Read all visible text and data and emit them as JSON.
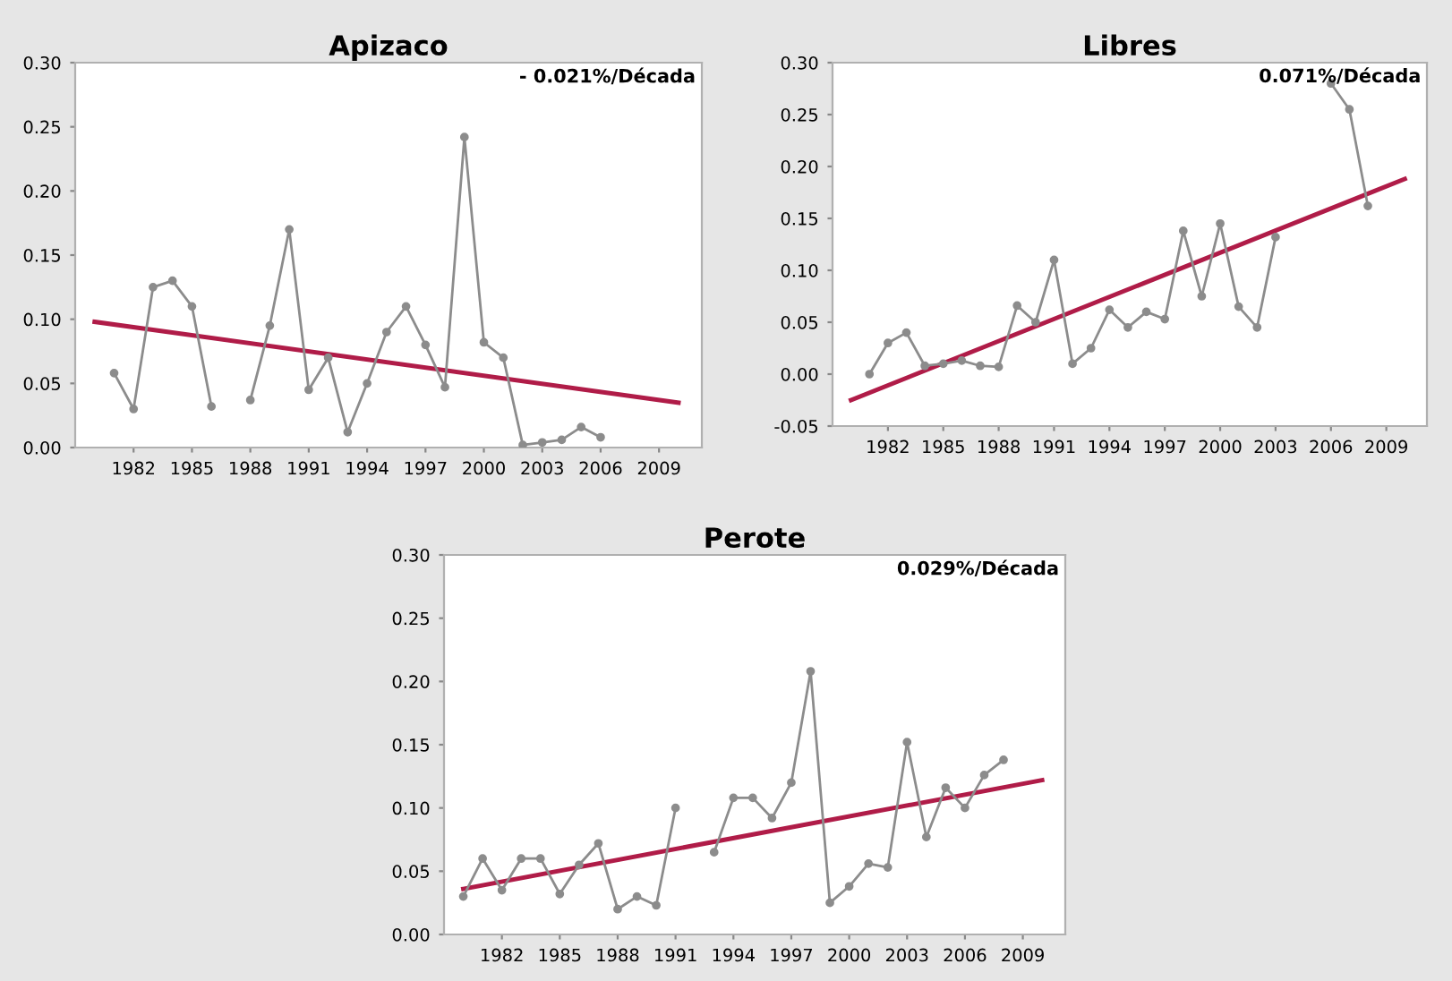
{
  "chart_data": [
    {
      "type": "line",
      "title": "Apizaco",
      "annotations": [
        "- 0.021%/Década"
      ],
      "xlim": [
        1979,
        2011.2
      ],
      "xticks": [
        1982,
        1985,
        1988,
        1991,
        1994,
        1997,
        2000,
        2003,
        2006,
        2009
      ],
      "ylim": [
        0,
        0.3
      ],
      "yticks": [
        {
          "value": 0,
          "label": "0.00"
        },
        {
          "value": 0.05,
          "label": "0.05"
        },
        {
          "value": 0.1,
          "label": "0.10"
        },
        {
          "value": 0.15,
          "label": "0.15"
        },
        {
          "value": 0.2,
          "label": "0.20"
        },
        {
          "value": 0.25,
          "label": "0.25"
        },
        {
          "value": 0.3,
          "label": "0.30"
        }
      ],
      "grid": false,
      "legend": false,
      "series": [
        {
          "color": "#8c8c8c",
          "marker": "circle",
          "x": [
            1981,
            1982,
            1983,
            1984,
            1985,
            1986,
            1987,
            1988,
            1989,
            1990,
            1991,
            1992,
            1993,
            1994,
            1995,
            1996,
            1997,
            1998,
            1999,
            2000,
            2001,
            2002,
            2003,
            2004,
            2005,
            2006
          ],
          "values": [
            0.058,
            0.03,
            0.125,
            0.13,
            0.11,
            0.032,
            null,
            0.037,
            0.095,
            0.17,
            0.045,
            0.07,
            0.012,
            0.05,
            0.09,
            0.11,
            0.08,
            0.047,
            0.242,
            0.082,
            0.07,
            0.002,
            0.004,
            0.006,
            0.016,
            0.008
          ]
        },
        {
          "color": "#b01c48",
          "marker": "none",
          "x": [
            1980,
            2010
          ],
          "values": [
            0.098,
            0.035
          ]
        }
      ]
    },
    {
      "type": "line",
      "title": "Libres",
      "annotations": [
        "0.071%/Década"
      ],
      "xlim": [
        1979,
        2011.2
      ],
      "xticks": [
        1982,
        1985,
        1988,
        1991,
        1994,
        1997,
        2000,
        2003,
        2006,
        2009
      ],
      "ylim": [
        -0.05,
        0.3
      ],
      "yticks": [
        {
          "value": -0.05,
          "label": "-0.05"
        },
        {
          "value": 0,
          "label": "0.00"
        },
        {
          "value": 0.05,
          "label": "0.05"
        },
        {
          "value": 0.1,
          "label": "0.10"
        },
        {
          "value": 0.15,
          "label": "0.15"
        },
        {
          "value": 0.2,
          "label": "0.20"
        },
        {
          "value": 0.25,
          "label": "0.25"
        },
        {
          "value": 0.3,
          "label": "0.30"
        }
      ],
      "grid": false,
      "legend": false,
      "series": [
        {
          "color": "#8c8c8c",
          "marker": "circle",
          "x": [
            1981,
            1982,
            1983,
            1984,
            1985,
            1986,
            1987,
            1988,
            1989,
            1990,
            1991,
            1992,
            1993,
            1994,
            1995,
            1996,
            1997,
            1998,
            1999,
            2000,
            2001,
            2002,
            2003,
            2004,
            2005,
            2006,
            2007,
            2008
          ],
          "values": [
            0.0,
            0.03,
            0.04,
            0.008,
            0.01,
            0.013,
            0.008,
            0.007,
            0.066,
            0.05,
            0.11,
            0.01,
            0.025,
            0.062,
            0.045,
            0.06,
            0.053,
            0.138,
            0.075,
            0.145,
            0.065,
            0.045,
            0.132,
            null,
            null,
            0.28,
            0.255,
            0.162
          ]
        },
        {
          "color": "#b01c48",
          "marker": "none",
          "x": [
            1980,
            2010
          ],
          "values": [
            -0.025,
            0.188
          ]
        }
      ]
    },
    {
      "type": "line",
      "title": "Perote",
      "annotations": [
        "0.029%/Década"
      ],
      "xlim": [
        1979,
        2011.2
      ],
      "xticks": [
        1982,
        1985,
        1988,
        1991,
        1994,
        1997,
        2000,
        2003,
        2006,
        2009
      ],
      "ylim": [
        0,
        0.3
      ],
      "yticks": [
        {
          "value": 0,
          "label": "0.00"
        },
        {
          "value": 0.05,
          "label": "0.05"
        },
        {
          "value": 0.1,
          "label": "0.10"
        },
        {
          "value": 0.15,
          "label": "0.15"
        },
        {
          "value": 0.2,
          "label": "0.20"
        },
        {
          "value": 0.25,
          "label": "0.25"
        },
        {
          "value": 0.3,
          "label": "0.30"
        }
      ],
      "grid": false,
      "legend": false,
      "series": [
        {
          "color": "#8c8c8c",
          "marker": "circle",
          "x": [
            1980,
            1981,
            1982,
            1983,
            1984,
            1985,
            1986,
            1987,
            1988,
            1989,
            1990,
            1991,
            1992,
            1993,
            1994,
            1995,
            1996,
            1997,
            1998,
            1999,
            2000,
            2001,
            2002,
            2003,
            2004,
            2005,
            2006,
            2007,
            2008
          ],
          "values": [
            0.03,
            0.06,
            0.035,
            0.06,
            0.06,
            0.032,
            0.055,
            0.072,
            0.02,
            0.03,
            0.023,
            0.1,
            null,
            0.065,
            0.108,
            0.108,
            0.092,
            0.12,
            0.208,
            0.025,
            0.038,
            0.056,
            0.053,
            0.152,
            0.077,
            0.116,
            0.1,
            0.126,
            0.138
          ]
        },
        {
          "color": "#b01c48",
          "marker": "none",
          "x": [
            1980,
            2010
          ],
          "values": [
            0.036,
            0.122
          ]
        }
      ]
    }
  ]
}
